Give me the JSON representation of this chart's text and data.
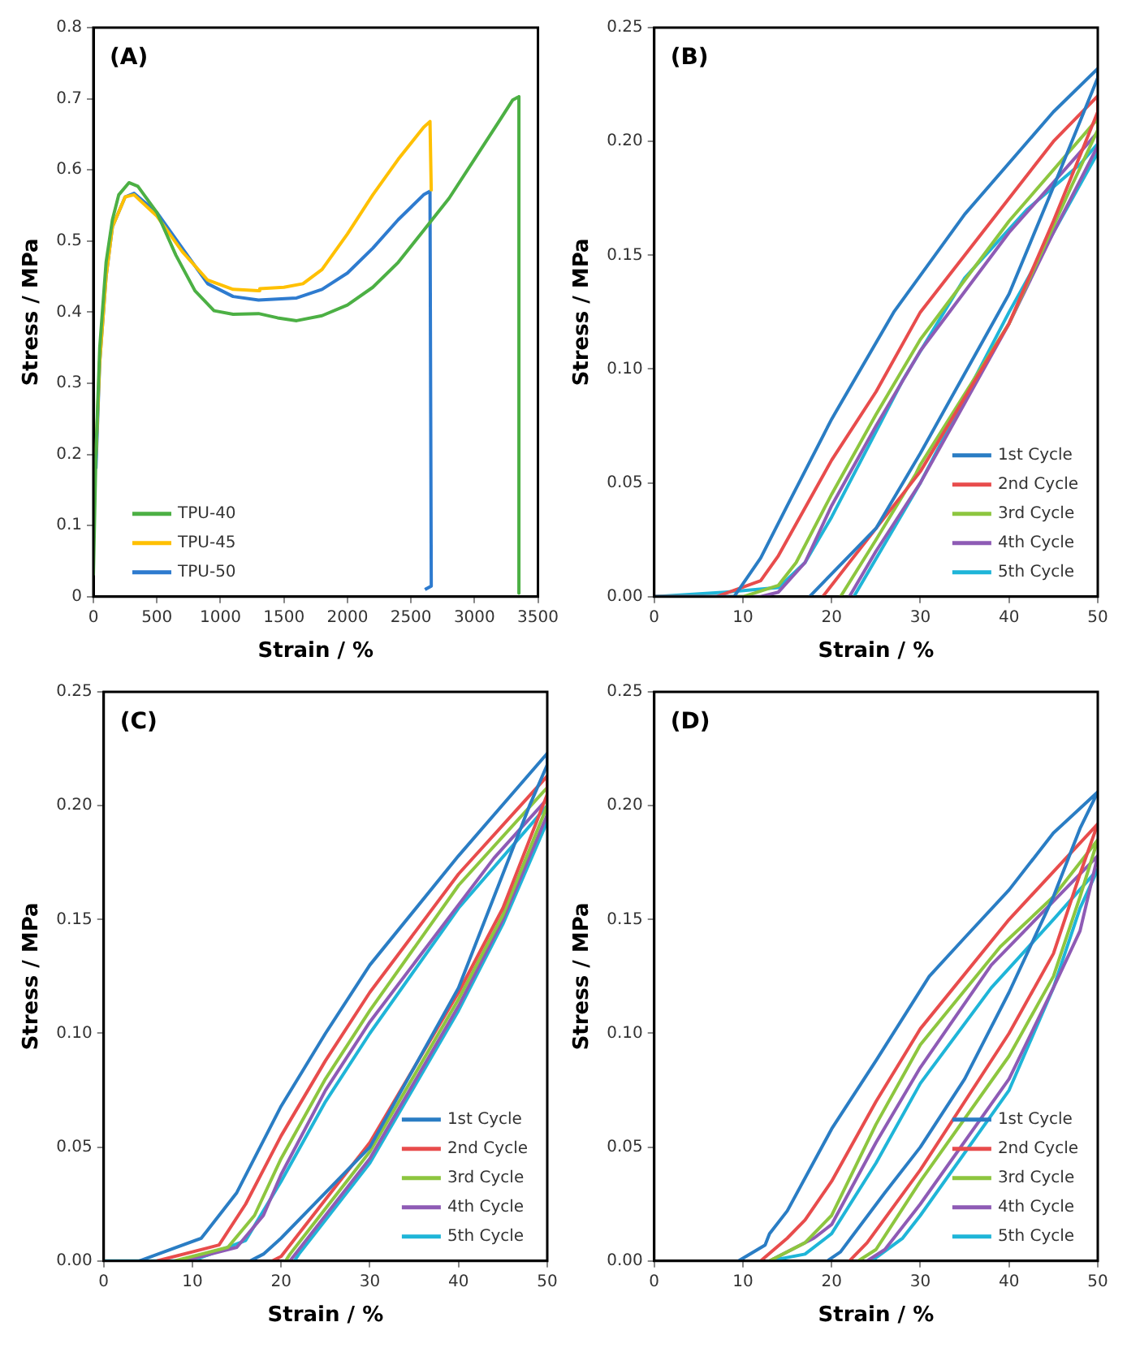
{
  "chart_data": [
    {
      "type": "line",
      "annotations": [
        "(A)"
      ],
      "xlabel": "Strain / %",
      "ylabel": "Stress / MPa",
      "xlim": [
        0,
        3500
      ],
      "xticks": [
        0,
        500,
        1000,
        1500,
        2000,
        2500,
        3000,
        3500
      ],
      "ylim": [
        0,
        0.8
      ],
      "yticks": [
        0,
        0.1,
        0.2,
        0.3,
        0.4,
        0.5,
        0.6,
        0.7,
        0.8
      ],
      "grid": false,
      "legend": "bottom left",
      "marker": "none",
      "line_style": "solid",
      "series": [
        {
          "name": "TPU-40",
          "color": "#4cb044",
          "x": [
            0,
            20,
            50,
            100,
            150,
            200,
            280,
            350,
            500,
            650,
            800,
            950,
            1100,
            1300,
            1450,
            1600,
            1800,
            2000,
            2200,
            2400,
            2600,
            2800,
            3000,
            3200,
            3300,
            3350,
            3350
          ],
          "values": [
            0.03,
            0.2,
            0.35,
            0.47,
            0.53,
            0.565,
            0.582,
            0.577,
            0.54,
            0.48,
            0.43,
            0.402,
            0.397,
            0.398,
            0.392,
            0.388,
            0.395,
            0.41,
            0.435,
            0.47,
            0.515,
            0.56,
            0.615,
            0.67,
            0.698,
            0.703,
            0.005
          ]
        },
        {
          "name": "TPU-45",
          "color": "#ffc000",
          "x": [
            20,
            50,
            100,
            150,
            250,
            320,
            500,
            700,
            900,
            1100,
            1300,
            1310,
            1500,
            1650,
            1800,
            2000,
            2200,
            2400,
            2600,
            2650,
            2660
          ],
          "values": [
            0.2,
            0.33,
            0.45,
            0.52,
            0.562,
            0.565,
            0.535,
            0.485,
            0.445,
            0.432,
            0.43,
            0.433,
            0.435,
            0.44,
            0.46,
            0.51,
            0.565,
            0.615,
            0.66,
            0.668,
            0.57
          ]
        },
        {
          "name": "TPU-50",
          "color": "#2e7bcf",
          "x": [
            20,
            50,
            100,
            150,
            250,
            320,
            500,
            700,
            900,
            1100,
            1300,
            1600,
            1800,
            2000,
            2200,
            2400,
            2600,
            2650,
            2660,
            2610
          ],
          "values": [
            0.18,
            0.33,
            0.45,
            0.52,
            0.562,
            0.567,
            0.54,
            0.49,
            0.44,
            0.422,
            0.417,
            0.42,
            0.432,
            0.455,
            0.49,
            0.53,
            0.565,
            0.57,
            0.015,
            0.01
          ]
        }
      ]
    },
    {
      "type": "line",
      "annotations": [
        "(B)"
      ],
      "xlabel": "Strain / %",
      "ylabel": "Stress / MPa",
      "xlim": [
        0,
        50
      ],
      "xticks": [
        0,
        10,
        20,
        30,
        40,
        50
      ],
      "ylim": [
        0,
        0.25
      ],
      "yticks": [
        {
          "value": 0,
          "label": "0.00"
        },
        {
          "value": 0.05,
          "label": "0.05"
        },
        {
          "value": 0.1,
          "label": "0.10"
        },
        {
          "value": 0.15,
          "label": "0.15"
        },
        {
          "value": 0.2,
          "label": "0.20"
        },
        {
          "value": 0.25,
          "label": "0.25"
        }
      ],
      "grid": false,
      "legend": "bottom right",
      "marker": "none",
      "line_style": "solid",
      "series": [
        {
          "name": "1st Cycle",
          "color": "#2a7dc4",
          "x": [
            0,
            9,
            12,
            15,
            20,
            27,
            35,
            45,
            50,
            50,
            45,
            40,
            30,
            25,
            17.5
          ],
          "values": [
            0,
            0,
            0.017,
            0.04,
            0.078,
            0.125,
            0.168,
            0.213,
            0.232,
            0.228,
            0.18,
            0.133,
            0.063,
            0.03,
            0
          ]
        },
        {
          "name": "2nd Cycle",
          "color": "#e84c4c",
          "x": [
            0,
            7,
            12,
            14,
            20,
            25,
            30,
            37,
            45,
            50,
            50,
            45,
            40,
            30,
            19
          ],
          "values": [
            0,
            0,
            0.007,
            0.018,
            0.06,
            0.09,
            0.125,
            0.16,
            0.2,
            0.22,
            0.213,
            0.165,
            0.12,
            0.055,
            0
          ]
        },
        {
          "name": "3rd Cycle",
          "color": "#8dc63f",
          "x": [
            0,
            10,
            14,
            16,
            20,
            25,
            30,
            40,
            50,
            50,
            47,
            40,
            30,
            29.5,
            25,
            21
          ],
          "values": [
            0,
            0,
            0.005,
            0.015,
            0.045,
            0.08,
            0.113,
            0.165,
            0.21,
            0.205,
            0.18,
            0.12,
            0.058,
            0.054,
            0.025,
            0
          ]
        },
        {
          "name": "4th Cycle",
          "color": "#8e5bb5",
          "x": [
            0,
            12,
            14,
            17,
            20,
            25,
            30,
            40,
            50,
            50,
            45,
            40,
            30,
            25,
            22
          ],
          "values": [
            0,
            0,
            0.002,
            0.015,
            0.04,
            0.075,
            0.108,
            0.16,
            0.204,
            0.198,
            0.16,
            0.12,
            0.05,
            0.02,
            0
          ]
        },
        {
          "name": "5th Cycle",
          "color": "#1fb5d8",
          "x": [
            0,
            8,
            14,
            17,
            20,
            28,
            35,
            42,
            48,
            50,
            50,
            45,
            40,
            30,
            24,
            22.5
          ],
          "values": [
            0,
            0.002,
            0.004,
            0.015,
            0.035,
            0.095,
            0.14,
            0.17,
            0.19,
            0.199,
            0.195,
            0.16,
            0.125,
            0.05,
            0.01,
            0
          ]
        }
      ]
    },
    {
      "type": "line",
      "annotations": [
        "(C)"
      ],
      "xlabel": "Strain / %",
      "ylabel": "Stress / MPa",
      "xlim": [
        0,
        50
      ],
      "xticks": [
        0,
        10,
        20,
        30,
        40,
        50
      ],
      "ylim": [
        0,
        0.25
      ],
      "yticks": [
        {
          "value": 0,
          "label": "0.00"
        },
        {
          "value": 0.05,
          "label": "0.05"
        },
        {
          "value": 0.1,
          "label": "0.10"
        },
        {
          "value": 0.15,
          "label": "0.15"
        },
        {
          "value": 0.2,
          "label": "0.20"
        },
        {
          "value": 0.25,
          "label": "0.25"
        }
      ],
      "grid": false,
      "legend": "bottom right",
      "marker": "none",
      "line_style": "solid",
      "series": [
        {
          "name": "1st Cycle",
          "color": "#2a7dc4",
          "x": [
            4,
            11,
            15,
            20,
            25,
            30,
            40,
            50,
            50,
            48,
            45,
            40,
            30,
            20,
            18,
            16.5
          ],
          "values": [
            0,
            0.01,
            0.03,
            0.068,
            0.1,
            0.13,
            0.178,
            0.223,
            0.218,
            0.2,
            0.17,
            0.12,
            0.05,
            0.01,
            0.003,
            0
          ]
        },
        {
          "name": "2nd Cycle",
          "color": "#e84c4c",
          "x": [
            6,
            13,
            16,
            20,
            25,
            30,
            40,
            50,
            50,
            45,
            40,
            30,
            20,
            19
          ],
          "values": [
            0,
            0.007,
            0.025,
            0.055,
            0.088,
            0.118,
            0.17,
            0.213,
            0.205,
            0.155,
            0.118,
            0.052,
            0.002,
            0
          ]
        },
        {
          "name": "3rd Cycle",
          "color": "#8dc63f",
          "x": [
            8,
            14,
            17,
            20,
            25,
            30,
            40,
            50,
            50,
            45,
            40,
            30,
            21,
            20.5
          ],
          "values": [
            0,
            0.006,
            0.02,
            0.045,
            0.08,
            0.11,
            0.165,
            0.208,
            0.2,
            0.152,
            0.115,
            0.048,
            0.003,
            0
          ]
        },
        {
          "name": "4th Cycle",
          "color": "#8e5bb5",
          "x": [
            9,
            15,
            18,
            20,
            25,
            30,
            44,
            50,
            50,
            45,
            40,
            30,
            22,
            21
          ],
          "values": [
            0,
            0.006,
            0.02,
            0.038,
            0.075,
            0.105,
            0.177,
            0.203,
            0.196,
            0.15,
            0.112,
            0.045,
            0.005,
            0
          ]
        },
        {
          "name": "5th Cycle",
          "color": "#1fb5d8",
          "x": [
            0,
            10,
            16,
            18,
            20,
            25,
            30,
            40,
            50,
            50,
            45,
            40,
            30,
            22,
            21.5
          ],
          "values": [
            0,
            0,
            0.009,
            0.022,
            0.035,
            0.07,
            0.1,
            0.155,
            0.2,
            0.193,
            0.148,
            0.11,
            0.043,
            0.003,
            0
          ]
        }
      ]
    },
    {
      "type": "line",
      "annotations": [
        "(D)"
      ],
      "xlabel": "Strain / %",
      "ylabel": "Stress / MPa",
      "xlim": [
        0,
        50
      ],
      "xticks": [
        0,
        10,
        20,
        30,
        40,
        50
      ],
      "ylim": [
        0,
        0.25
      ],
      "yticks": [
        {
          "value": 0,
          "label": "0.00"
        },
        {
          "value": 0.05,
          "label": "0.05"
        },
        {
          "value": 0.1,
          "label": "0.10"
        },
        {
          "value": 0.15,
          "label": "0.15"
        },
        {
          "value": 0.2,
          "label": "0.20"
        },
        {
          "value": 0.25,
          "label": "0.25"
        }
      ],
      "grid": false,
      "legend": "bottom right",
      "marker": "none",
      "line_style": "solid",
      "series": [
        {
          "name": "1st Cycle",
          "color": "#2a7dc4",
          "x": [
            9.5,
            12.5,
            13,
            15,
            20,
            25,
            31,
            35,
            40,
            45,
            50,
            48,
            45,
            40,
            35,
            30,
            26,
            21,
            19.5
          ],
          "values": [
            0,
            0.007,
            0.012,
            0.022,
            0.058,
            0.088,
            0.125,
            0.142,
            0.163,
            0.188,
            0.206,
            0.19,
            0.16,
            0.118,
            0.08,
            0.05,
            0.03,
            0.004,
            0
          ]
        },
        {
          "name": "2nd Cycle",
          "color": "#e84c4c",
          "x": [
            12,
            15,
            17,
            20,
            25,
            30,
            40,
            50,
            48,
            45,
            40,
            30,
            24,
            22
          ],
          "values": [
            0,
            0.01,
            0.018,
            0.035,
            0.07,
            0.102,
            0.15,
            0.192,
            0.17,
            0.135,
            0.1,
            0.04,
            0.008,
            0
          ]
        },
        {
          "name": "3rd Cycle",
          "color": "#8dc63f",
          "x": [
            13,
            17,
            20,
            25,
            30,
            39,
            45,
            50,
            48,
            45,
            40,
            30,
            25,
            23
          ],
          "values": [
            0,
            0.008,
            0.02,
            0.06,
            0.095,
            0.138,
            0.16,
            0.185,
            0.16,
            0.125,
            0.09,
            0.035,
            0.005,
            0
          ]
        },
        {
          "name": "4th Cycle",
          "color": "#8e5bb5",
          "x": [
            13,
            18,
            20,
            25,
            30,
            38,
            45,
            50,
            48,
            45,
            40,
            30,
            26,
            24
          ],
          "values": [
            0,
            0.01,
            0.016,
            0.052,
            0.085,
            0.13,
            0.158,
            0.178,
            0.145,
            0.12,
            0.08,
            0.025,
            0.005,
            0
          ]
        },
        {
          "name": "5th Cycle",
          "color": "#1fb5d8",
          "x": [
            13,
            17,
            20,
            25,
            30,
            38,
            45,
            50,
            48,
            45,
            40,
            30,
            28,
            24.5
          ],
          "values": [
            0,
            0.003,
            0.012,
            0.043,
            0.078,
            0.12,
            0.15,
            0.172,
            0.155,
            0.12,
            0.075,
            0.02,
            0.01,
            0
          ]
        }
      ]
    }
  ]
}
